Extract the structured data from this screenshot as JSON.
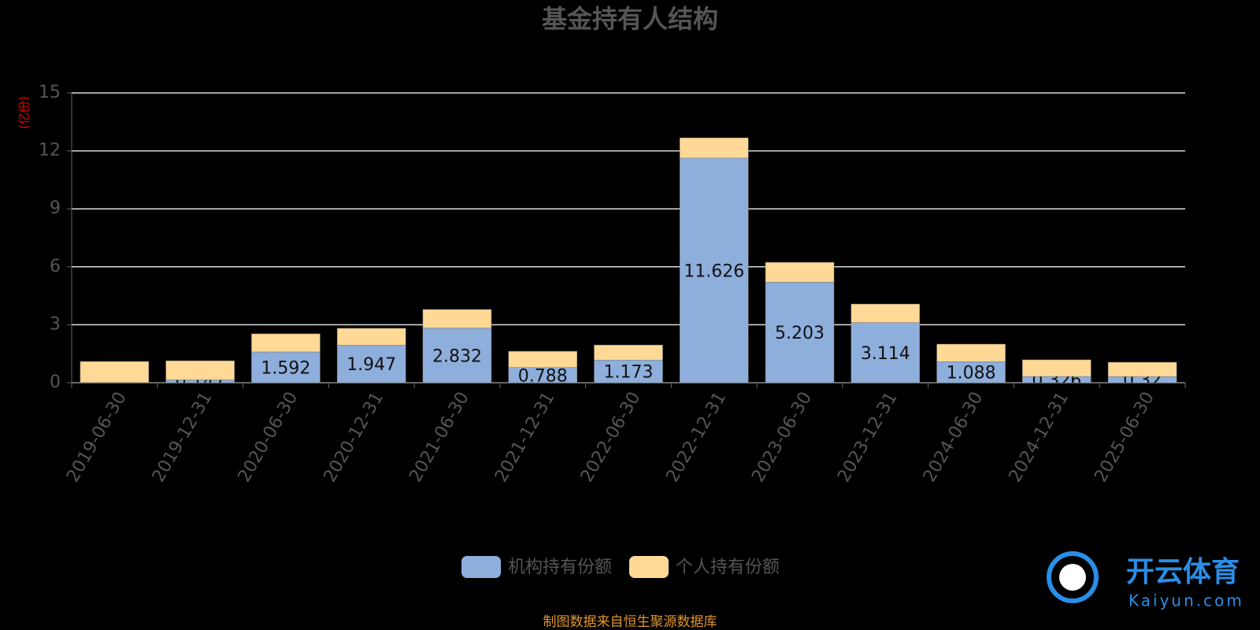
{
  "chart_data": {
    "type": "stacked_bar",
    "title": "基金持有人结构",
    "y_label": "(亿份)",
    "categories": [
      "2019-06-30",
      "2019-12-31",
      "2020-06-30",
      "2020-12-31",
      "2021-06-30",
      "2021-12-31",
      "2022-06-30",
      "2022-12-31",
      "2023-06-30",
      "2023-12-31",
      "2024-06-30",
      "2024-12-31",
      "2025-06-30"
    ],
    "series": [
      {
        "name": "机构持有份额",
        "color": "#8eaedc",
        "labels": true,
        "values": [
          0.01,
          0.147,
          1.592,
          1.947,
          2.832,
          0.788,
          1.173,
          11.626,
          5.203,
          3.114,
          1.088,
          0.326,
          0.32
        ]
      },
      {
        "name": "个人持有份额",
        "color": "#ffd995",
        "labels": false,
        "values": [
          1.09,
          0.99,
          0.94,
          0.87,
          0.96,
          0.84,
          0.78,
          1.05,
          1.03,
          0.96,
          0.91,
          0.86,
          0.74
        ]
      }
    ],
    "ylim": [
      0,
      15
    ],
    "yticks": [
      0,
      3,
      6,
      9,
      12,
      15
    ],
    "grid": true,
    "source": "制图数据来自恒生聚源数据库"
  },
  "watermark": {
    "brand": "开云体育",
    "site": "Kaiyun.com"
  }
}
